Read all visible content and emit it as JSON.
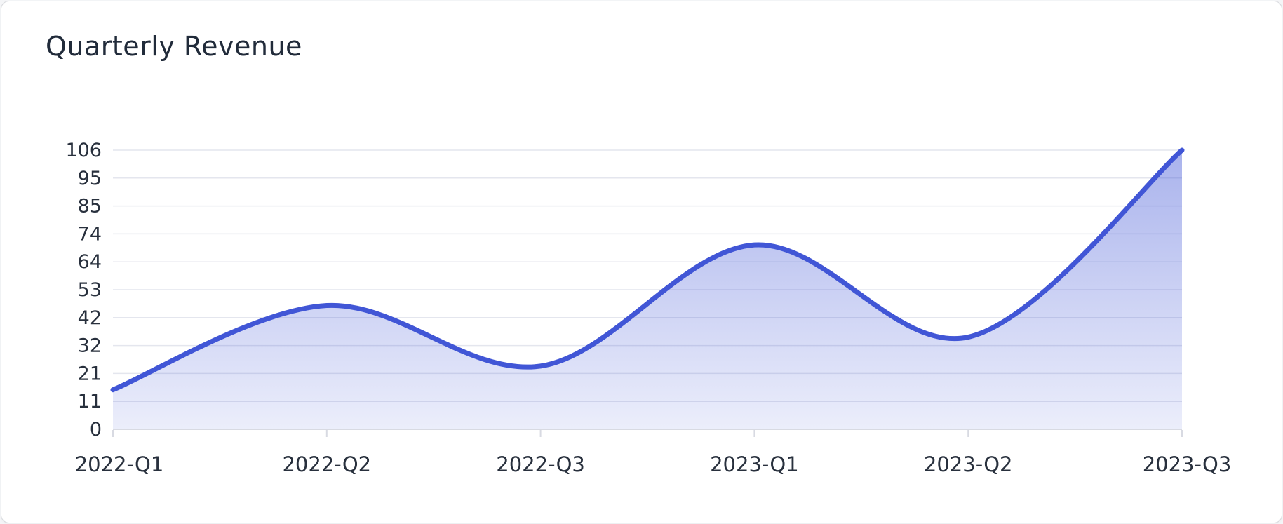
{
  "card": {
    "title": "Quarterly Revenue"
  },
  "chart_data": {
    "type": "area",
    "title": "Quarterly Revenue",
    "categories": [
      "2022-Q1",
      "2022-Q2",
      "2022-Q3",
      "2023-Q1",
      "2023-Q2",
      "2023-Q3"
    ],
    "series": [
      {
        "name": "Quarterly Revenue",
        "values": [
          15,
          47,
          24,
          70,
          35,
          106
        ]
      }
    ],
    "y_tick_labels": [
      "0",
      "11",
      "21",
      "32",
      "42",
      "53",
      "64",
      "74",
      "85",
      "95",
      "106"
    ],
    "ylim": [
      0,
      106
    ],
    "xlabel": "",
    "ylabel": "",
    "grid": true,
    "smooth": true,
    "legend": "none",
    "colors": {
      "line": "#4156d6",
      "fill_top": "rgba(65, 86, 214, 0.45)",
      "fill_bottom": "rgba(65, 86, 214, 0.10)",
      "gridline": "#e4e6ee",
      "baseline": "#d8dae2",
      "axis_text": "#28303d",
      "title_text": "#212b3a"
    }
  }
}
